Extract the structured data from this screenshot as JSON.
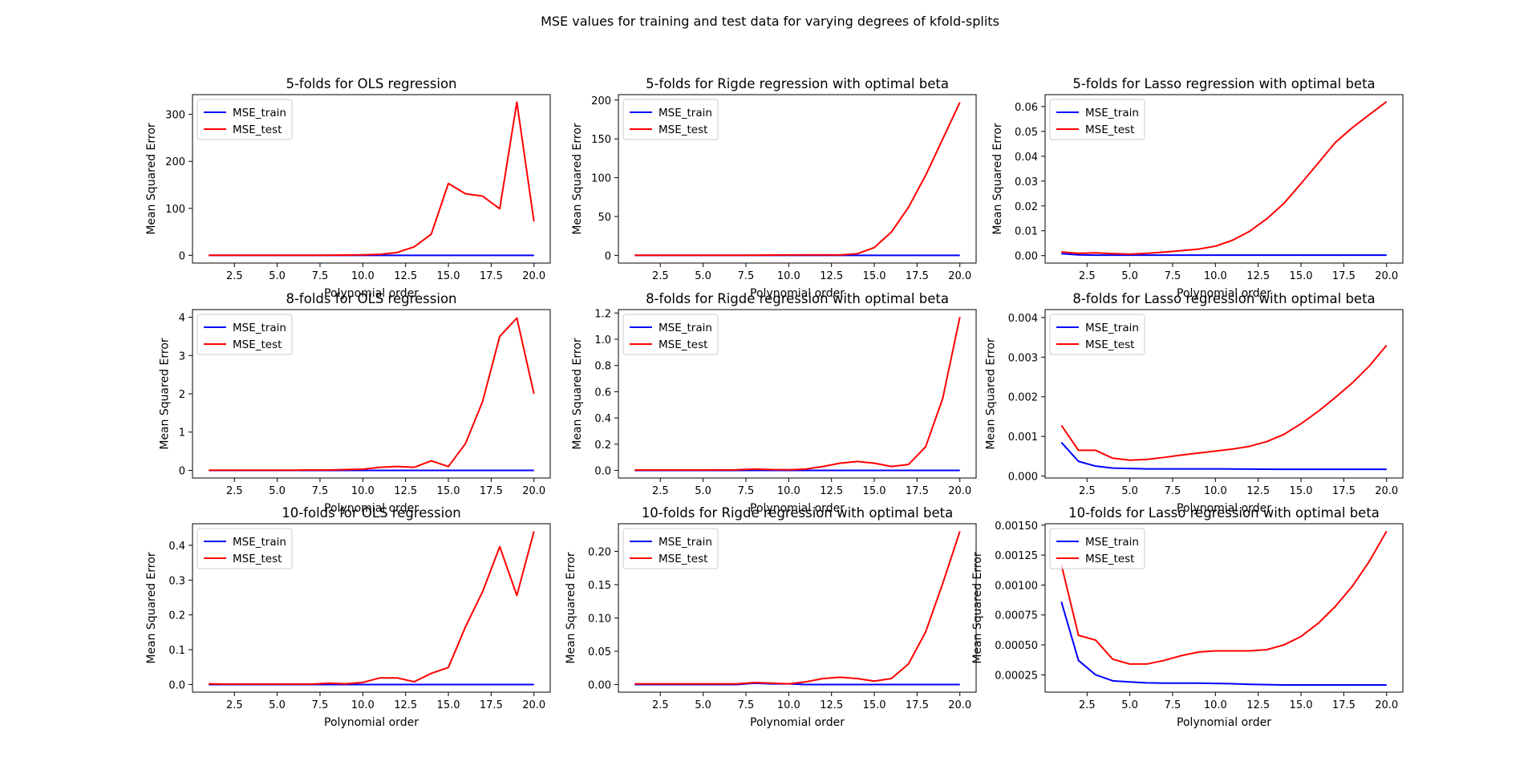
{
  "figure": {
    "title": "MSE values for training and test data for varying degrees of kfold-splits"
  },
  "chart_data": [
    {
      "type": "line",
      "title": "5-folds for OLS regression",
      "xlabel": "Polynomial order",
      "ylabel": "Mean Squared Error",
      "xlim": [
        0.05,
        20.95
      ],
      "ylim": [
        -16.5,
        342
      ],
      "xticks": [
        2.5,
        5.0,
        7.5,
        10.0,
        12.5,
        15.0,
        17.5,
        20.0
      ],
      "yticks": [
        0,
        100,
        200,
        300
      ],
      "x": [
        1,
        2,
        3,
        4,
        5,
        6,
        7,
        8,
        9,
        10,
        11,
        12,
        13,
        14,
        15,
        16,
        17,
        18,
        19,
        20
      ],
      "series": [
        {
          "name": "MSE_train",
          "color": "#0000ff",
          "values": [
            0,
            0,
            0,
            0,
            0,
            0,
            0,
            0,
            0,
            0,
            0,
            0,
            0,
            0,
            0,
            0,
            0,
            0,
            0,
            0
          ]
        },
        {
          "name": "MSE_test",
          "color": "#ff0000",
          "values": [
            0.1,
            0.1,
            0.1,
            0.1,
            0.1,
            0.1,
            0.2,
            0.3,
            0.5,
            1,
            2,
            6,
            18,
            45,
            153,
            131,
            126,
            99,
            326,
            72
          ]
        }
      ],
      "legend": "top-left",
      "grid": false
    },
    {
      "type": "line",
      "title": "5-folds for Rigde regression with optimal beta",
      "xlabel": "Polynomial order",
      "ylabel": "Mean Squared Error",
      "xlim": [
        0.05,
        20.95
      ],
      "ylim": [
        -10,
        207
      ],
      "xticks": [
        2.5,
        5.0,
        7.5,
        10.0,
        12.5,
        15.0,
        17.5,
        20.0
      ],
      "yticks": [
        0,
        50,
        100,
        150,
        200
      ],
      "x": [
        1,
        2,
        3,
        4,
        5,
        6,
        7,
        8,
        9,
        10,
        11,
        12,
        13,
        14,
        15,
        16,
        17,
        18,
        19,
        20
      ],
      "series": [
        {
          "name": "MSE_train",
          "color": "#0000ff",
          "values": [
            0,
            0,
            0,
            0,
            0,
            0,
            0,
            0,
            0,
            0,
            0,
            0,
            0,
            0,
            0,
            0,
            0,
            0,
            0,
            0
          ]
        },
        {
          "name": "MSE_test",
          "color": "#ff0000",
          "values": [
            0.1,
            0.1,
            0.1,
            0.1,
            0.1,
            0.1,
            0.1,
            0.2,
            0.3,
            0.5,
            0.6,
            0.6,
            0.5,
            2,
            10,
            30,
            62,
            103,
            150,
            197
          ]
        }
      ],
      "legend": "top-left",
      "grid": false
    },
    {
      "type": "line",
      "title": "5-folds for Lasso regression with optimal beta",
      "xlabel": "Polynomial order",
      "ylabel": "Mean Squared Error",
      "xlim": [
        0.05,
        20.95
      ],
      "ylim": [
        -0.003,
        0.0648
      ],
      "xticks": [
        2.5,
        5.0,
        7.5,
        10.0,
        12.5,
        15.0,
        17.5,
        20.0
      ],
      "yticks": [
        0.0,
        0.01,
        0.02,
        0.03,
        0.04,
        0.05,
        0.06
      ],
      "ytick_labels": [
        "0.00",
        "0.01",
        "0.02",
        "0.03",
        "0.04",
        "0.05",
        "0.06"
      ],
      "x": [
        1,
        2,
        3,
        4,
        5,
        6,
        7,
        8,
        9,
        10,
        11,
        12,
        13,
        14,
        15,
        16,
        17,
        18,
        19,
        20
      ],
      "series": [
        {
          "name": "MSE_train",
          "color": "#0000ff",
          "values": [
            0.0008,
            0.0003,
            0.0002,
            0.0002,
            0.0002,
            0.0002,
            0.0002,
            0.0002,
            0.0002,
            0.0002,
            0.0002,
            0.0002,
            0.0002,
            0.0002,
            0.0002,
            0.0002,
            0.0002,
            0.0002,
            0.0002,
            0.0002
          ]
        },
        {
          "name": "MSE_test",
          "color": "#ff0000",
          "values": [
            0.0015,
            0.0009,
            0.0011,
            0.0008,
            0.0006,
            0.0009,
            0.0014,
            0.002,
            0.0026,
            0.0038,
            0.0062,
            0.0098,
            0.0148,
            0.021,
            0.029,
            0.0372,
            0.0455,
            0.0515,
            0.0568,
            0.062
          ]
        }
      ],
      "legend": "top-left",
      "grid": false
    },
    {
      "type": "line",
      "title": "8-folds for OLS regression",
      "xlabel": "Polynomial order",
      "ylabel": "Mean Squared Error",
      "xlim": [
        0.05,
        20.95
      ],
      "ylim": [
        -0.2,
        4.2
      ],
      "xticks": [
        2.5,
        5.0,
        7.5,
        10.0,
        12.5,
        15.0,
        17.5,
        20.0
      ],
      "yticks": [
        0,
        1,
        2,
        3,
        4
      ],
      "x": [
        1,
        2,
        3,
        4,
        5,
        6,
        7,
        8,
        9,
        10,
        11,
        12,
        13,
        14,
        15,
        16,
        17,
        18,
        19,
        20
      ],
      "series": [
        {
          "name": "MSE_train",
          "color": "#0000ff",
          "values": [
            0,
            0,
            0,
            0,
            0,
            0,
            0,
            0,
            0,
            0,
            0,
            0,
            0,
            0,
            0,
            0,
            0,
            0,
            0,
            0
          ]
        },
        {
          "name": "MSE_test",
          "color": "#ff0000",
          "values": [
            0.005,
            0.005,
            0.005,
            0.005,
            0.005,
            0.005,
            0.01,
            0.01,
            0.02,
            0.03,
            0.08,
            0.1,
            0.08,
            0.25,
            0.1,
            0.7,
            1.8,
            3.5,
            3.98,
            2.0
          ]
        }
      ],
      "legend": "top-left",
      "grid": false
    },
    {
      "type": "line",
      "title": "8-folds for Rigde regression with optimal beta",
      "xlabel": "Polynomial order",
      "ylabel": "Mean Squared Error",
      "xlim": [
        0.05,
        20.95
      ],
      "ylim": [
        -0.058,
        1.226
      ],
      "xticks": [
        2.5,
        5.0,
        7.5,
        10.0,
        12.5,
        15.0,
        17.5,
        20.0
      ],
      "yticks": [
        0.0,
        0.2,
        0.4,
        0.6,
        0.8,
        1.0,
        1.2
      ],
      "ytick_labels": [
        "0.0",
        "0.2",
        "0.4",
        "0.6",
        "0.8",
        "1.0",
        "1.2"
      ],
      "x": [
        1,
        2,
        3,
        4,
        5,
        6,
        7,
        8,
        9,
        10,
        11,
        12,
        13,
        14,
        15,
        16,
        17,
        18,
        19,
        20
      ],
      "series": [
        {
          "name": "MSE_train",
          "color": "#0000ff",
          "values": [
            0,
            0,
            0,
            0,
            0,
            0,
            0,
            0,
            0,
            0,
            0,
            0,
            0,
            0,
            0,
            0,
            0,
            0,
            0,
            0
          ]
        },
        {
          "name": "MSE_test",
          "color": "#ff0000",
          "values": [
            0.003,
            0.003,
            0.003,
            0.003,
            0.003,
            0.004,
            0.005,
            0.01,
            0.006,
            0.005,
            0.01,
            0.03,
            0.055,
            0.068,
            0.055,
            0.03,
            0.045,
            0.18,
            0.55,
            1.17
          ]
        }
      ],
      "legend": "top-left",
      "grid": false
    },
    {
      "type": "line",
      "title": "8-folds for Lasso regression with optimal beta",
      "xlabel": "Polynomial order",
      "ylabel": "Mean Squared Error",
      "xlim": [
        0.05,
        20.95
      ],
      "ylim": [
        -5e-05,
        0.0042
      ],
      "xticks": [
        2.5,
        5.0,
        7.5,
        10.0,
        12.5,
        15.0,
        17.5,
        20.0
      ],
      "yticks": [
        0.0,
        0.001,
        0.002,
        0.003,
        0.004
      ],
      "ytick_labels": [
        "0.000",
        "0.001",
        "0.002",
        "0.003",
        "0.004"
      ],
      "x": [
        1,
        2,
        3,
        4,
        5,
        6,
        7,
        8,
        9,
        10,
        11,
        12,
        13,
        14,
        15,
        16,
        17,
        18,
        19,
        20
      ],
      "series": [
        {
          "name": "MSE_train",
          "color": "#0000ff",
          "values": [
            0.00085,
            0.00037,
            0.00025,
            0.0002,
            0.00019,
            0.00018,
            0.00018,
            0.00018,
            0.00018,
            0.00018,
            0.000178,
            0.000175,
            0.000172,
            0.00017,
            0.00017,
            0.00017,
            0.00017,
            0.00017,
            0.00017,
            0.00017
          ]
        },
        {
          "name": "MSE_test",
          "color": "#ff0000",
          "values": [
            0.00128,
            0.00065,
            0.00065,
            0.00045,
            0.0004,
            0.00042,
            0.00047,
            0.00053,
            0.00058,
            0.00063,
            0.00068,
            0.00075,
            0.00087,
            0.00105,
            0.00132,
            0.00163,
            0.00198,
            0.00235,
            0.00278,
            0.0033
          ]
        }
      ],
      "legend": "top-left",
      "grid": false
    },
    {
      "type": "line",
      "title": "10-folds for OLS regression",
      "xlabel": "Polynomial order",
      "ylabel": "Mean Squared Error",
      "xlim": [
        0.05,
        20.95
      ],
      "ylim": [
        -0.022,
        0.462
      ],
      "xticks": [
        2.5,
        5.0,
        7.5,
        10.0,
        12.5,
        15.0,
        17.5,
        20.0
      ],
      "yticks": [
        0.0,
        0.1,
        0.2,
        0.3,
        0.4
      ],
      "ytick_labels": [
        "0.0",
        "0.1",
        "0.2",
        "0.3",
        "0.4"
      ],
      "x": [
        1,
        2,
        3,
        4,
        5,
        6,
        7,
        8,
        9,
        10,
        11,
        12,
        13,
        14,
        15,
        16,
        17,
        18,
        19,
        20
      ],
      "series": [
        {
          "name": "MSE_train",
          "color": "#0000ff",
          "values": [
            0,
            0,
            0,
            0,
            0,
            0,
            0,
            0,
            0,
            0,
            0,
            0,
            0,
            0,
            0,
            0,
            0,
            0,
            0,
            0
          ]
        },
        {
          "name": "MSE_test",
          "color": "#ff0000",
          "values": [
            0.002,
            0.001,
            0.001,
            0.001,
            0.001,
            0.001,
            0.001,
            0.004,
            0.002,
            0.006,
            0.019,
            0.019,
            0.008,
            0.032,
            0.049,
            0.166,
            0.267,
            0.396,
            0.256,
            0.44
          ]
        }
      ],
      "legend": "top-left",
      "grid": false
    },
    {
      "type": "line",
      "title": "10-folds for Rigde regression with optimal beta",
      "xlabel": "Polynomial order",
      "ylabel": "Mean Squared Error",
      "xlim": [
        0.05,
        20.95
      ],
      "ylim": [
        -0.0115,
        0.2415
      ],
      "xticks": [
        2.5,
        5.0,
        7.5,
        10.0,
        12.5,
        15.0,
        17.5,
        20.0
      ],
      "yticks": [
        0.0,
        0.05,
        0.1,
        0.15,
        0.2
      ],
      "ytick_labels": [
        "0.00",
        "0.05",
        "0.10",
        "0.15",
        "0.20"
      ],
      "x": [
        1,
        2,
        3,
        4,
        5,
        6,
        7,
        8,
        9,
        10,
        11,
        12,
        13,
        14,
        15,
        16,
        17,
        18,
        19,
        20
      ],
      "series": [
        {
          "name": "MSE_train",
          "color": "#0000ff",
          "values": [
            0,
            0,
            0,
            0,
            0,
            0,
            0,
            0.002,
            0.001,
            0.001,
            0,
            0,
            0,
            0,
            0,
            0,
            0,
            0,
            0,
            0
          ]
        },
        {
          "name": "MSE_test",
          "color": "#ff0000",
          "values": [
            0.001,
            0.001,
            0.001,
            0.001,
            0.001,
            0.001,
            0.001,
            0.003,
            0.002,
            0.001,
            0.004,
            0.009,
            0.011,
            0.009,
            0.005,
            0.009,
            0.031,
            0.079,
            0.152,
            0.23
          ]
        }
      ],
      "legend": "top-left",
      "grid": false
    },
    {
      "type": "line",
      "title": "10-folds for Lasso regression with optimal beta",
      "xlabel": "Polynomial order",
      "ylabel": "Mean Squared Error",
      "xlim": [
        0.05,
        20.95
      ],
      "ylim": [
        0.000105,
        0.001512
      ],
      "xticks": [
        2.5,
        5.0,
        7.5,
        10.0,
        12.5,
        15.0,
        17.5,
        20.0
      ],
      "yticks": [
        0.00025,
        0.0005,
        0.00075,
        0.001,
        0.00125,
        0.0015
      ],
      "ytick_labels": [
        "0.00025",
        "0.00050",
        "0.00075",
        "0.00100",
        "0.00125",
        "0.00150"
      ],
      "x": [
        1,
        2,
        3,
        4,
        5,
        6,
        7,
        8,
        9,
        10,
        11,
        12,
        13,
        14,
        15,
        16,
        17,
        18,
        19,
        20
      ],
      "series": [
        {
          "name": "MSE_train",
          "color": "#0000ff",
          "values": [
            0.00086,
            0.00037,
            0.00025,
            0.0002,
            0.00019,
            0.000183,
            0.00018,
            0.00018,
            0.00018,
            0.000178,
            0.000175,
            0.00017,
            0.000168,
            0.000165,
            0.000165,
            0.000165,
            0.000165,
            0.000165,
            0.000165,
            0.000165
          ]
        },
        {
          "name": "MSE_test",
          "color": "#ff0000",
          "values": [
            0.00117,
            0.00058,
            0.00054,
            0.00038,
            0.00034,
            0.00034,
            0.00037,
            0.00041,
            0.00044,
            0.00045,
            0.00045,
            0.00045,
            0.00046,
            0.0005,
            0.00057,
            0.00068,
            0.00082,
            0.00099,
            0.0012,
            0.00145
          ]
        }
      ],
      "legend": "top-left",
      "grid": false
    }
  ]
}
